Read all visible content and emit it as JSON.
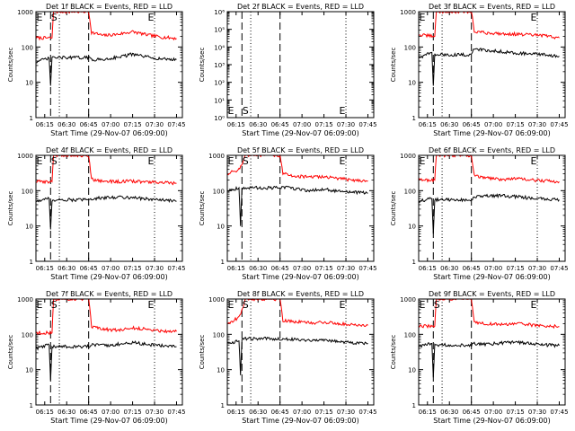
{
  "chart_data": [
    {
      "type": "line",
      "title": "Det 1f BLACK = Events, RED = LLD",
      "xlabel": "Start Time (29-Nov-07 06:09:00)",
      "ylabel": "Counts/sec",
      "yscale": "log",
      "ylim": [
        1,
        1000
      ],
      "y_ticks": [
        "1",
        "10",
        "100",
        "1000"
      ],
      "x_ticks": [
        "06:15",
        "06:30",
        "06:45",
        "07:00",
        "07:15",
        "07:30",
        "07:45"
      ],
      "markers": [
        "E",
        "S",
        "E"
      ],
      "series": [
        {
          "color": "#ff0000",
          "x": [
            "06:09",
            "06:20",
            "06:21",
            "06:45",
            "06:47",
            "06:55",
            "07:05",
            "07:15",
            "07:25",
            "07:35",
            "07:45"
          ],
          "y": [
            180,
            180,
            1000,
            1000,
            260,
            210,
            230,
            270,
            220,
            190,
            175
          ]
        },
        {
          "color": "#000000",
          "x": [
            "06:09",
            "06:18",
            "06:19",
            "06:20",
            "06:45",
            "06:47",
            "06:55",
            "07:05",
            "07:15",
            "07:25",
            "07:35",
            "07:45"
          ],
          "y": [
            38,
            48,
            8,
            50,
            50,
            44,
            44,
            52,
            62,
            52,
            46,
            44
          ]
        }
      ]
    },
    {
      "type": "line",
      "title": "Det 2f BLACK = Events, RED = LLD",
      "xlabel": "Start Time (29-Nov-07 06:09:00)",
      "ylabel": "Counts/sec",
      "yscale": "log",
      "ylim": [
        1,
        1000000
      ],
      "y_ticks": [
        "10⁰",
        "10¹",
        "10²",
        "10³",
        "10⁴",
        "10⁵",
        "10⁶"
      ],
      "x_ticks": [
        "06:15",
        "06:30",
        "06:45",
        "07:00",
        "07:15",
        "07:30",
        "07:45"
      ],
      "markers": [
        "E",
        "S",
        "E"
      ],
      "series": []
    },
    {
      "type": "line",
      "title": "Det 3f BLACK = Events, RED = LLD",
      "xlabel": "Start Time (29-Nov-07 06:09:00)",
      "ylabel": "Counts/sec",
      "yscale": "log",
      "ylim": [
        1,
        1000
      ],
      "y_ticks": [
        "1",
        "10",
        "100",
        "1000"
      ],
      "x_ticks": [
        "06:15",
        "06:30",
        "06:45",
        "07:00",
        "07:15",
        "07:30",
        "07:45"
      ],
      "markers": [
        "E",
        "E"
      ],
      "series": [
        {
          "color": "#ff0000",
          "x": [
            "06:09",
            "06:20",
            "06:21",
            "06:45",
            "06:47",
            "06:55",
            "07:05",
            "07:15",
            "07:25",
            "07:35",
            "07:45"
          ],
          "y": [
            220,
            200,
            1000,
            1000,
            280,
            250,
            240,
            230,
            220,
            210,
            180
          ]
        },
        {
          "color": "#000000",
          "x": [
            "06:09",
            "06:18",
            "06:19",
            "06:20",
            "06:45",
            "06:47",
            "06:55",
            "07:05",
            "07:15",
            "07:25",
            "07:35",
            "07:45"
          ],
          "y": [
            50,
            70,
            8,
            60,
            60,
            90,
            80,
            75,
            68,
            64,
            60,
            55
          ]
        }
      ]
    },
    {
      "type": "line",
      "title": "Det 4f BLACK = Events, RED = LLD",
      "xlabel": "Start Time (29-Nov-07 06:09:00)",
      "ylabel": "Counts/sec",
      "yscale": "log",
      "ylim": [
        1,
        1000
      ],
      "y_ticks": [
        "1",
        "10",
        "100",
        "1000"
      ],
      "x_ticks": [
        "06:15",
        "06:30",
        "06:45",
        "07:00",
        "07:15",
        "07:30",
        "07:45"
      ],
      "markers": [
        "E",
        "S",
        "E"
      ],
      "series": [
        {
          "color": "#ff0000",
          "x": [
            "06:09",
            "06:20",
            "06:21",
            "06:45",
            "06:47",
            "06:55",
            "07:05",
            "07:15",
            "07:25",
            "07:35",
            "07:45"
          ],
          "y": [
            180,
            180,
            1000,
            1000,
            210,
            185,
            180,
            185,
            175,
            170,
            160
          ]
        },
        {
          "color": "#000000",
          "x": [
            "06:09",
            "06:18",
            "06:19",
            "06:20",
            "06:45",
            "06:47",
            "06:55",
            "07:05",
            "07:15",
            "07:25",
            "07:35",
            "07:45"
          ],
          "y": [
            50,
            60,
            8,
            55,
            55,
            60,
            62,
            66,
            64,
            58,
            54,
            50
          ]
        }
      ]
    },
    {
      "type": "line",
      "title": "Det 5f BLACK = Events, RED = LLD",
      "xlabel": "Start Time (29-Nov-07 06:09:00)",
      "ylabel": "Counts/sec",
      "yscale": "log",
      "ylim": [
        1,
        1000
      ],
      "y_ticks": [
        "1",
        "10",
        "100",
        "1000"
      ],
      "x_ticks": [
        "06:15",
        "06:30",
        "06:45",
        "07:00",
        "07:15",
        "07:30",
        "07:45"
      ],
      "markers": [
        "E",
        "S",
        "E"
      ],
      "series": [
        {
          "color": "#ff0000",
          "x": [
            "06:09",
            "06:17",
            "06:20",
            "06:21",
            "06:45",
            "06:47",
            "06:55",
            "07:05",
            "07:15",
            "07:25",
            "07:35",
            "07:45"
          ],
          "y": [
            300,
            400,
            700,
            1000,
            1000,
            300,
            260,
            240,
            250,
            220,
            200,
            190
          ]
        },
        {
          "color": "#000000",
          "x": [
            "06:09",
            "06:17",
            "06:18",
            "06:19",
            "06:45",
            "06:47",
            "06:55",
            "07:05",
            "07:15",
            "07:25",
            "07:35",
            "07:45"
          ],
          "y": [
            100,
            120,
            10,
            120,
            120,
            125,
            115,
            100,
            110,
            95,
            90,
            85
          ]
        }
      ]
    },
    {
      "type": "line",
      "title": "Det 6f BLACK = Events, RED = LLD",
      "xlabel": "Start Time (29-Nov-07 06:09:00)",
      "ylabel": "Counts/sec",
      "yscale": "log",
      "ylim": [
        1,
        1000
      ],
      "y_ticks": [
        "1",
        "10",
        "100",
        "1000"
      ],
      "x_ticks": [
        "06:15",
        "06:30",
        "06:45",
        "07:00",
        "07:15",
        "07:30",
        "07:45"
      ],
      "markers": [
        "E",
        "E"
      ],
      "series": [
        {
          "color": "#ff0000",
          "x": [
            "06:09",
            "06:20",
            "06:21",
            "06:45",
            "06:47",
            "06:55",
            "07:05",
            "07:15",
            "07:25",
            "07:35",
            "07:45"
          ],
          "y": [
            200,
            200,
            1000,
            1000,
            260,
            230,
            210,
            220,
            200,
            190,
            180
          ]
        },
        {
          "color": "#000000",
          "x": [
            "06:09",
            "06:18",
            "06:19",
            "06:20",
            "06:45",
            "06:47",
            "06:55",
            "07:05",
            "07:15",
            "07:25",
            "07:35",
            "07:45"
          ],
          "y": [
            50,
            60,
            6,
            55,
            55,
            65,
            70,
            72,
            68,
            62,
            58,
            55
          ]
        }
      ]
    },
    {
      "type": "line",
      "title": "Det 7f BLACK = Events, RED = LLD",
      "xlabel": "Start Time (29-Nov-07 06:09:00)",
      "ylabel": "Counts/sec",
      "yscale": "log",
      "ylim": [
        1,
        1000
      ],
      "y_ticks": [
        "1",
        "10",
        "100",
        "1000"
      ],
      "x_ticks": [
        "06:15",
        "06:30",
        "06:45",
        "07:00",
        "07:15",
        "07:30",
        "07:45"
      ],
      "markers": [
        "E",
        "S",
        "E"
      ],
      "series": [
        {
          "color": "#ff0000",
          "x": [
            "06:09",
            "06:20",
            "06:21",
            "06:45",
            "06:47",
            "06:55",
            "07:05",
            "07:15",
            "07:25",
            "07:35",
            "07:45"
          ],
          "y": [
            110,
            110,
            1000,
            1000,
            160,
            140,
            130,
            150,
            140,
            125,
            120
          ]
        },
        {
          "color": "#000000",
          "x": [
            "06:09",
            "06:18",
            "06:19",
            "06:20",
            "06:45",
            "06:47",
            "06:55",
            "07:05",
            "07:15",
            "07:25",
            "07:35",
            "07:45"
          ],
          "y": [
            40,
            50,
            5,
            45,
            45,
            50,
            48,
            52,
            58,
            52,
            48,
            45
          ]
        }
      ]
    },
    {
      "type": "line",
      "title": "Det 8f BLACK = Events, RED = LLD",
      "xlabel": "Start Time (29-Nov-07 06:09:00)",
      "ylabel": "Counts/sec",
      "yscale": "log",
      "ylim": [
        1,
        1000
      ],
      "y_ticks": [
        "1",
        "10",
        "100",
        "1000"
      ],
      "x_ticks": [
        "06:15",
        "06:30",
        "06:45",
        "07:00",
        "07:15",
        "07:30",
        "07:45"
      ],
      "markers": [
        "E",
        "S",
        "E"
      ],
      "series": [
        {
          "color": "#ff0000",
          "x": [
            "06:09",
            "06:17",
            "06:20",
            "06:21",
            "06:45",
            "06:47",
            "06:55",
            "07:05",
            "07:15",
            "07:25",
            "07:35",
            "07:45"
          ],
          "y": [
            200,
            300,
            600,
            1000,
            1000,
            250,
            230,
            210,
            220,
            200,
            190,
            180
          ]
        },
        {
          "color": "#000000",
          "x": [
            "06:09",
            "06:17",
            "06:18",
            "06:19",
            "06:45",
            "06:47",
            "06:55",
            "07:05",
            "07:15",
            "07:25",
            "07:35",
            "07:45"
          ],
          "y": [
            55,
            65,
            7,
            75,
            75,
            75,
            72,
            68,
            70,
            62,
            58,
            55
          ]
        }
      ]
    },
    {
      "type": "line",
      "title": "Det 9f BLACK = Events, RED = LLD",
      "xlabel": "Start Time (29-Nov-07 06:09:00)",
      "ylabel": "Counts/sec",
      "yscale": "log",
      "ylim": [
        1,
        1000
      ],
      "y_ticks": [
        "1",
        "10",
        "100",
        "1000"
      ],
      "x_ticks": [
        "06:15",
        "06:30",
        "06:45",
        "07:00",
        "07:15",
        "07:30",
        "07:45"
      ],
      "markers": [
        "E",
        "S",
        "E"
      ],
      "series": [
        {
          "color": "#ff0000",
          "x": [
            "06:09",
            "06:20",
            "06:21",
            "06:45",
            "06:47",
            "06:55",
            "07:05",
            "07:15",
            "07:25",
            "07:35",
            "07:45"
          ],
          "y": [
            170,
            170,
            1000,
            1000,
            220,
            200,
            190,
            200,
            185,
            175,
            165
          ]
        },
        {
          "color": "#000000",
          "x": [
            "06:09",
            "06:18",
            "06:19",
            "06:20",
            "06:45",
            "06:47",
            "06:55",
            "07:05",
            "07:15",
            "07:25",
            "07:35",
            "07:45"
          ],
          "y": [
            45,
            55,
            6,
            50,
            50,
            55,
            52,
            56,
            60,
            55,
            50,
            48
          ]
        }
      ]
    }
  ]
}
